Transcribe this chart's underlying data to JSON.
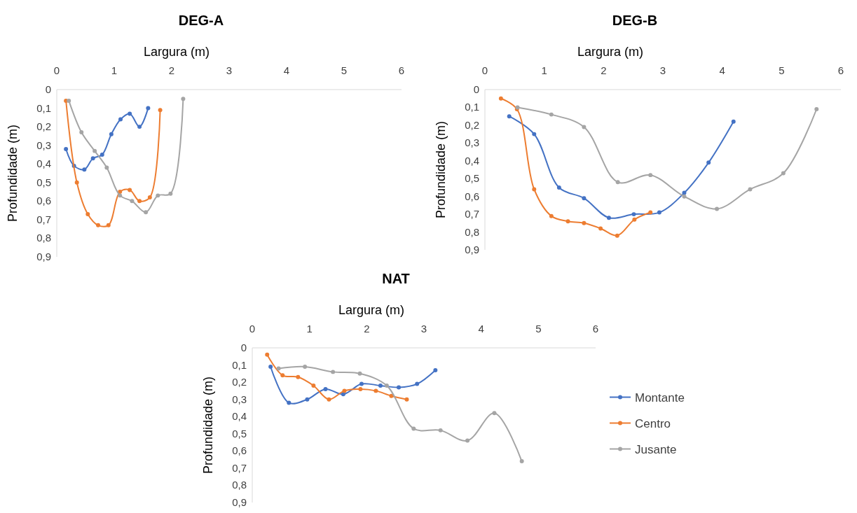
{
  "chart_data": [
    {
      "type": "line",
      "title": "DEG-A",
      "xlabel": "Largura (m)",
      "ylabel": "Profundidade (m)",
      "marker": "circle",
      "grid": false,
      "xlim": [
        0,
        6
      ],
      "xticks": [
        0,
        1,
        2,
        3,
        4,
        5,
        6
      ],
      "ylim": [
        0.9,
        0
      ],
      "yticks": [
        {
          "value": 0,
          "label": "0"
        },
        {
          "value": 0.1,
          "label": "0,1"
        },
        {
          "value": 0.2,
          "label": "0,2"
        },
        {
          "value": 0.3,
          "label": "0,3"
        },
        {
          "value": 0.4,
          "label": "0,4"
        },
        {
          "value": 0.5,
          "label": "0,5"
        },
        {
          "value": 0.6,
          "label": "0,6"
        },
        {
          "value": 0.7,
          "label": "0,7"
        },
        {
          "value": 0.8,
          "label": "0,8"
        },
        {
          "value": 0.9,
          "label": "0,9"
        }
      ],
      "series": [
        {
          "color": "#4472c4",
          "x": [
            0.16,
            0.3,
            0.48,
            0.63,
            0.79,
            0.95,
            1.11,
            1.27,
            1.44,
            1.59
          ],
          "values": [
            0.32,
            0.41,
            0.43,
            0.37,
            0.35,
            0.24,
            0.16,
            0.13,
            0.2,
            0.1
          ]
        },
        {
          "color": "#ed7d31",
          "x": [
            0.16,
            0.35,
            0.54,
            0.72,
            0.9,
            1.1,
            1.27,
            1.44,
            1.62,
            1.8
          ],
          "values": [
            0.06,
            0.5,
            0.67,
            0.73,
            0.73,
            0.55,
            0.54,
            0.6,
            0.58,
            0.11
          ]
        },
        {
          "color": "#a5a5a5",
          "x": [
            0.21,
            0.43,
            0.66,
            0.87,
            1.1,
            1.31,
            1.55,
            1.76,
            1.98,
            2.2
          ],
          "values": [
            0.06,
            0.23,
            0.33,
            0.42,
            0.57,
            0.6,
            0.66,
            0.57,
            0.56,
            0.05
          ]
        }
      ]
    },
    {
      "type": "line",
      "title": "DEG-B",
      "xlabel": "Largura (m)",
      "ylabel": "Profundidade (m)",
      "marker": "circle",
      "grid": false,
      "xlim": [
        0,
        6
      ],
      "xticks": [
        0,
        1,
        2,
        3,
        4,
        5,
        6
      ],
      "ylim": [
        0.9,
        0
      ],
      "yticks": [
        {
          "value": 0,
          "label": "0"
        },
        {
          "value": 0.1,
          "label": "0,1"
        },
        {
          "value": 0.2,
          "label": "0,2"
        },
        {
          "value": 0.3,
          "label": "0,3"
        },
        {
          "value": 0.4,
          "label": "0,4"
        },
        {
          "value": 0.5,
          "label": "0,5"
        },
        {
          "value": 0.6,
          "label": "0,6"
        },
        {
          "value": 0.7,
          "label": "0,7"
        },
        {
          "value": 0.8,
          "label": "0,8"
        },
        {
          "value": 0.9,
          "label": "0,9"
        }
      ],
      "series": [
        {
          "color": "#4472c4",
          "x": [
            0.41,
            0.83,
            1.25,
            1.67,
            2.09,
            2.51,
            2.94,
            3.36,
            3.77,
            4.19
          ],
          "values": [
            0.15,
            0.25,
            0.55,
            0.61,
            0.72,
            0.7,
            0.69,
            0.58,
            0.41,
            0.18
          ]
        },
        {
          "color": "#ed7d31",
          "x": [
            0.27,
            0.54,
            0.83,
            1.12,
            1.4,
            1.67,
            1.95,
            2.23,
            2.52,
            2.79
          ],
          "values": [
            0.05,
            0.11,
            0.56,
            0.71,
            0.74,
            0.75,
            0.78,
            0.82,
            0.73,
            0.69
          ]
        },
        {
          "color": "#a5a5a5",
          "x": [
            0.55,
            1.12,
            1.67,
            2.24,
            2.79,
            3.36,
            3.91,
            4.47,
            5.03,
            5.59
          ],
          "values": [
            0.1,
            0.14,
            0.21,
            0.52,
            0.48,
            0.6,
            0.67,
            0.56,
            0.47,
            0.11
          ]
        }
      ]
    },
    {
      "type": "line",
      "title": "NAT",
      "xlabel": "Largura (m)",
      "ylabel": "Profundidade (m)",
      "marker": "circle",
      "grid": false,
      "legend": "right",
      "xlim": [
        0,
        6
      ],
      "xticks": [
        0,
        1,
        2,
        3,
        4,
        5,
        6
      ],
      "ylim": [
        0.9,
        0
      ],
      "yticks": [
        {
          "value": 0,
          "label": "0"
        },
        {
          "value": 0.1,
          "label": "0,1"
        },
        {
          "value": 0.2,
          "label": "0,2"
        },
        {
          "value": 0.3,
          "label": "0,3"
        },
        {
          "value": 0.4,
          "label": "0,4"
        },
        {
          "value": 0.5,
          "label": "0,5"
        },
        {
          "value": 0.6,
          "label": "0,6"
        },
        {
          "value": 0.7,
          "label": "0,7"
        },
        {
          "value": 0.8,
          "label": "0,8"
        },
        {
          "value": 0.9,
          "label": "0,9"
        }
      ],
      "series": [
        {
          "name": "Montante",
          "color": "#4472c4",
          "x": [
            0.32,
            0.64,
            0.96,
            1.28,
            1.59,
            1.91,
            2.24,
            2.56,
            2.88,
            3.2
          ],
          "values": [
            0.11,
            0.32,
            0.3,
            0.24,
            0.27,
            0.21,
            0.22,
            0.23,
            0.21,
            0.13
          ]
        },
        {
          "name": "Centro",
          "color": "#ed7d31",
          "x": [
            0.26,
            0.53,
            0.8,
            1.07,
            1.34,
            1.61,
            1.89,
            2.16,
            2.43,
            2.7
          ],
          "values": [
            0.04,
            0.16,
            0.17,
            0.22,
            0.3,
            0.25,
            0.24,
            0.25,
            0.28,
            0.3
          ]
        },
        {
          "name": "Jusante",
          "color": "#a5a5a5",
          "x": [
            0.46,
            0.92,
            1.41,
            1.88,
            2.35,
            2.82,
            3.29,
            3.76,
            4.23,
            4.71
          ],
          "values": [
            0.12,
            0.11,
            0.14,
            0.15,
            0.22,
            0.47,
            0.48,
            0.54,
            0.38,
            0.66
          ]
        }
      ]
    }
  ]
}
